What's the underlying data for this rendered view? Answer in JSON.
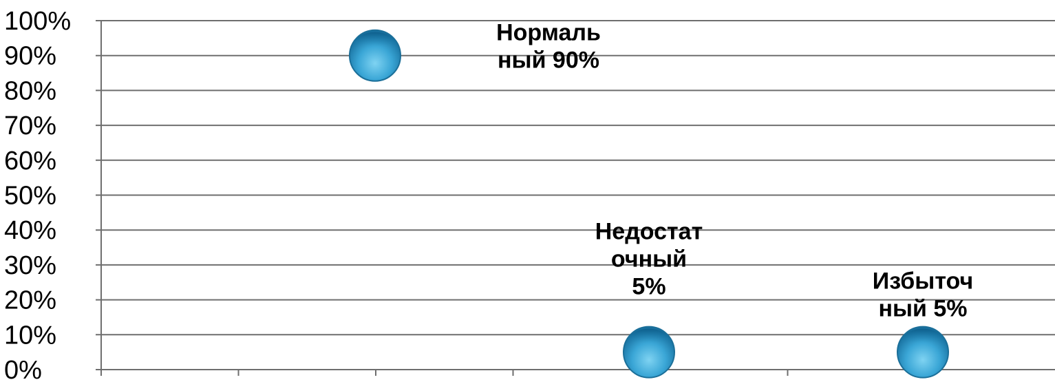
{
  "chart_data": {
    "type": "scatter",
    "title": "",
    "xlabel": "",
    "ylabel": "",
    "y_ticks": [
      "0%",
      "10%",
      "20%",
      "30%",
      "40%",
      "50%",
      "60%",
      "70%",
      "80%",
      "90%",
      "100%"
    ],
    "ylim": [
      0,
      100
    ],
    "xlim": [
      0,
      7
    ],
    "grid": true,
    "legend": "none",
    "marker_color": "#2b95c8",
    "points": [
      {
        "x": 2,
        "y": 90,
        "label_lines": [
          "Нормаль",
          "ный 90%"
        ]
      },
      {
        "x": 4,
        "y": 5,
        "label_lines": [
          "Недостат",
          "очный",
          "5%"
        ]
      },
      {
        "x": 6,
        "y": 5,
        "label_lines": [
          "Избыточ",
          "ный  5%"
        ]
      }
    ]
  }
}
